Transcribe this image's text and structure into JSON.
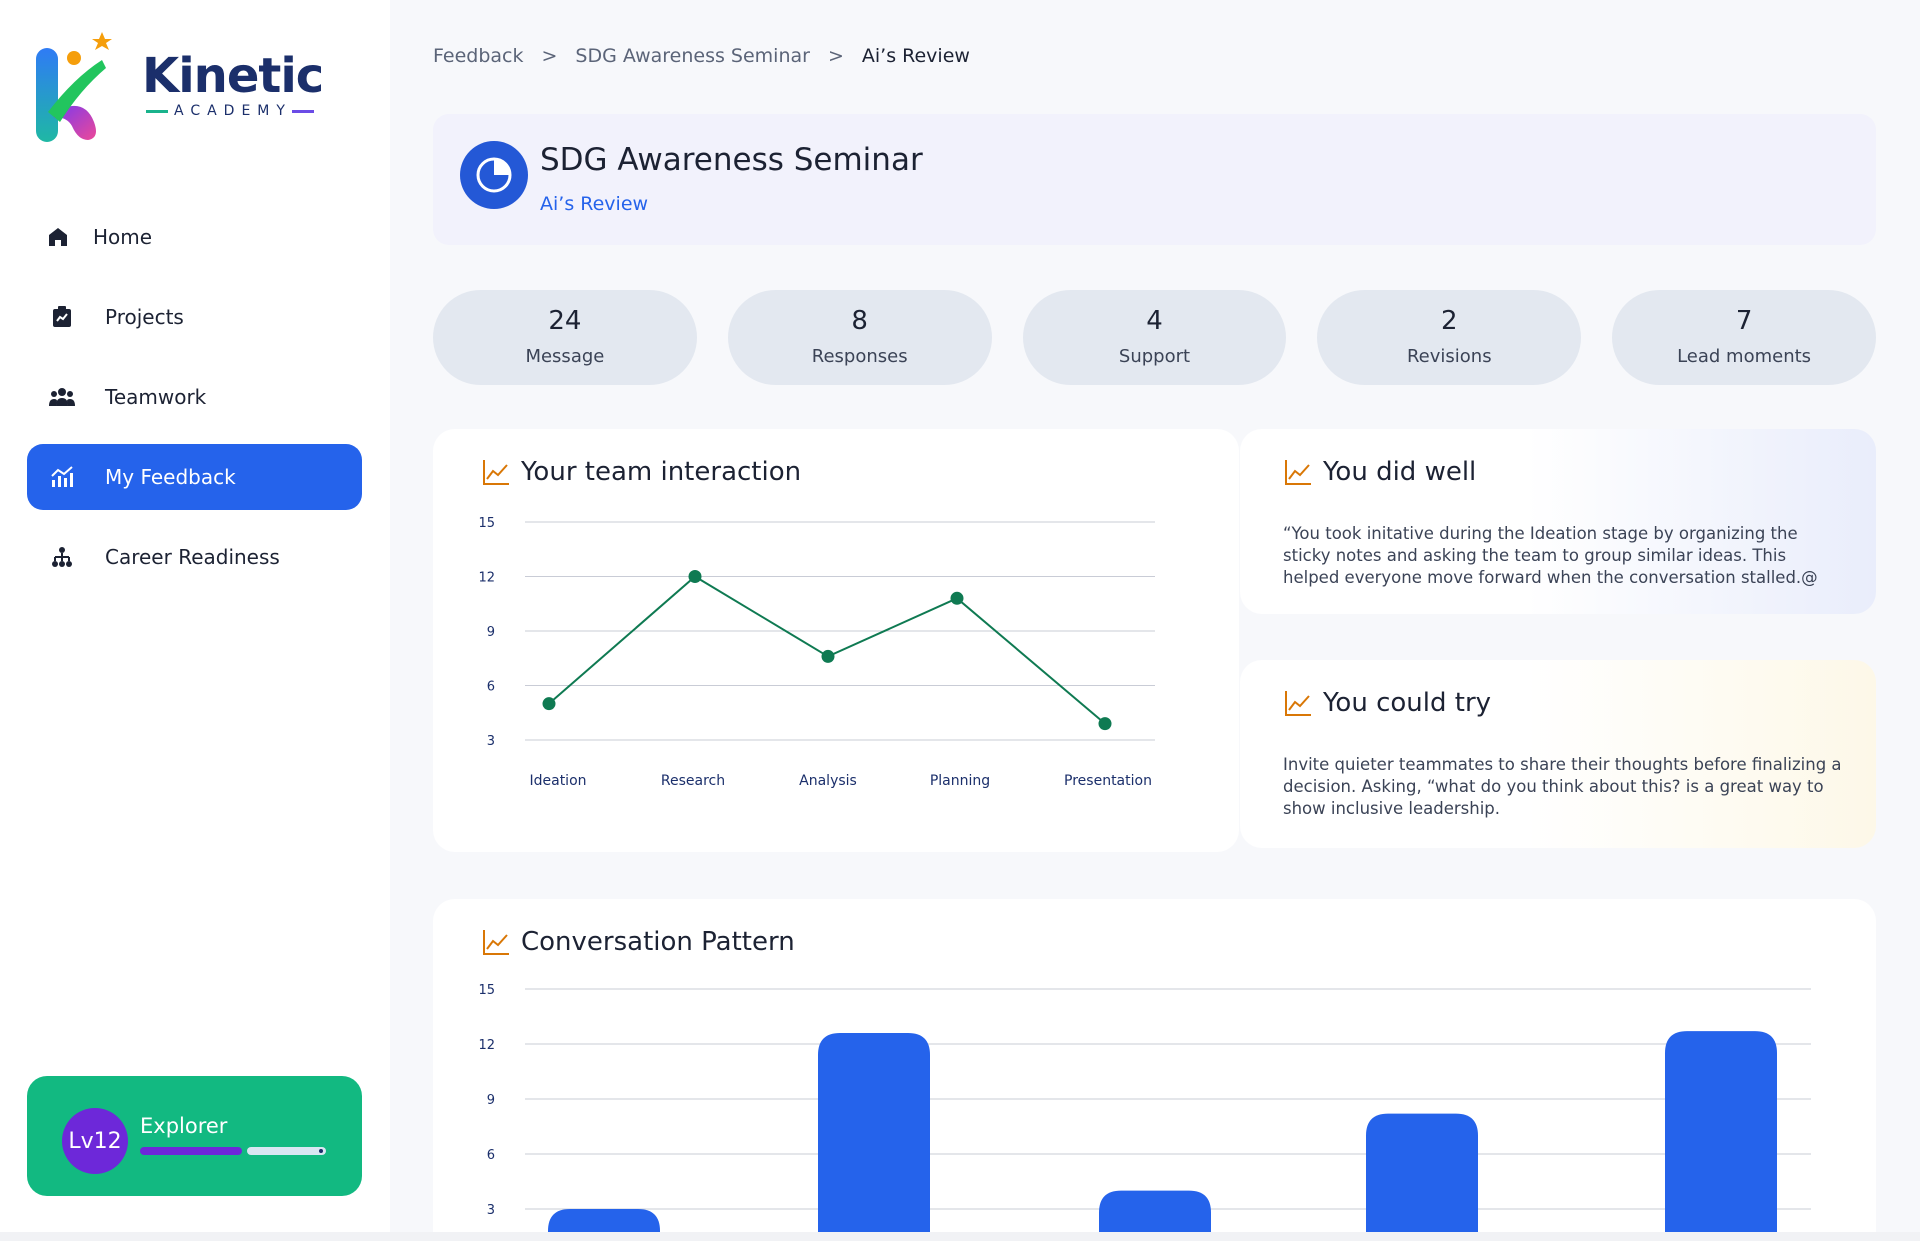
{
  "brand": {
    "name": "Kinetic",
    "subtitle": "ACADEMY",
    "colors": {
      "accent": "#2563eb",
      "green": "#12b981",
      "purple": "#6d28d9",
      "navy": "#1b2f6b"
    }
  },
  "sidebar": {
    "items": [
      {
        "label": "Home",
        "icon": "home-icon",
        "active": false
      },
      {
        "label": "Projects",
        "icon": "projects-icon",
        "active": false
      },
      {
        "label": "Teamwork",
        "icon": "team-icon",
        "active": false
      },
      {
        "label": "My Feedback",
        "icon": "chart-icon",
        "active": true
      },
      {
        "label": "Career Readiness",
        "icon": "hierarchy-icon",
        "active": false
      }
    ],
    "level": {
      "badge": "Lv12",
      "name": "Explorer",
      "progress": 0.55
    }
  },
  "breadcrumb": {
    "items": [
      "Feedback",
      "SDG Awareness Seminar",
      "Ai’s Review"
    ],
    "separator": ">"
  },
  "header": {
    "title": "SDG Awareness Seminar",
    "subtitle": "Ai’s Review"
  },
  "stats": [
    {
      "value": "24",
      "label": "Message"
    },
    {
      "value": "8",
      "label": "Responses"
    },
    {
      "value": "4",
      "label": "Support"
    },
    {
      "value": "2",
      "label": "Revisions"
    },
    {
      "value": "7",
      "label": "Lead moments"
    }
  ],
  "team_card": {
    "title": "Your team interaction"
  },
  "well_card": {
    "title": "You did well",
    "text": "“You took initative during the Ideation stage by organizing the sticky notes and asking the team to group similar ideas. This helped everyone move forward when the conversation stalled.@"
  },
  "try_card": {
    "title": "You could try",
    "text": "Invite quieter teammates to share their thoughts before finalizing a decision. Asking, “what do you think about this? is a great way to show inclusive leadership."
  },
  "conv_card": {
    "title": "Conversation Pattern"
  },
  "chart_data": [
    {
      "type": "line",
      "title": "Your team interaction",
      "categories": [
        "Ideation",
        "Research",
        "Analysis",
        "Planning",
        "Presentation"
      ],
      "values": [
        5,
        12,
        7.6,
        10.8,
        3.9
      ],
      "yticks": [
        3,
        6,
        9,
        12,
        15
      ],
      "ylim": [
        3,
        15
      ],
      "grid": true,
      "color": "#0f7a52"
    },
    {
      "type": "bar",
      "title": "Conversation Pattern",
      "values": [
        3,
        12.6,
        4,
        8.2,
        12.7
      ],
      "yticks": [
        3,
        6,
        9,
        12,
        15
      ],
      "ylim": [
        3,
        15
      ],
      "grid": true,
      "color": "#2563eb"
    }
  ]
}
